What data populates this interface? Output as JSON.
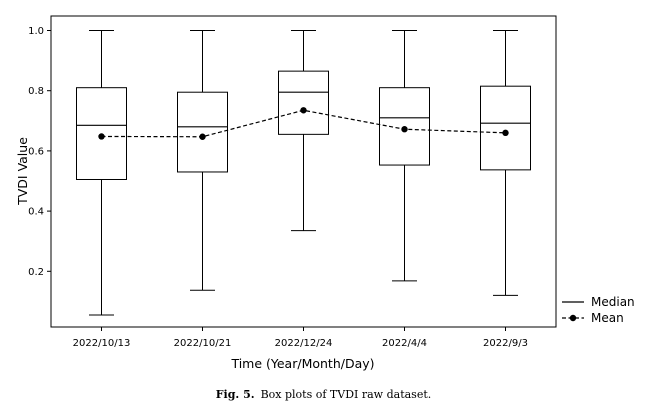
{
  "figure": {
    "caption_label": "Fig. 5.",
    "caption_text": "Box plots of TVDI raw dataset."
  },
  "chart_data": {
    "type": "box",
    "xlabel": "Time (Year/Month/Day)",
    "ylabel": "TVDI Value",
    "categories": [
      "2022/10/13",
      "2022/10/21",
      "2022/12/24",
      "2022/4/4",
      "2022/9/3"
    ],
    "ylim": [
      0.0,
      1.04
    ],
    "yticks": [
      "0.2",
      "0.4",
      "0.6",
      "0.8",
      "1.0"
    ],
    "boxes": [
      {
        "min": 0.055,
        "q1": 0.505,
        "median": 0.685,
        "q3": 0.81,
        "max": 1.0
      },
      {
        "min": 0.137,
        "q1": 0.53,
        "median": 0.68,
        "q3": 0.795,
        "max": 1.0
      },
      {
        "min": 0.335,
        "q1": 0.655,
        "median": 0.795,
        "q3": 0.865,
        "max": 1.0
      },
      {
        "min": 0.168,
        "q1": 0.553,
        "median": 0.71,
        "q3": 0.81,
        "max": 1.0
      },
      {
        "min": 0.12,
        "q1": 0.537,
        "median": 0.692,
        "q3": 0.815,
        "max": 1.0
      }
    ],
    "mean": [
      0.648,
      0.647,
      0.735,
      0.672,
      0.66
    ],
    "legend": {
      "position": "outside-right-bottom",
      "median_label": "Median",
      "mean_label": "Mean"
    },
    "grid": false
  }
}
